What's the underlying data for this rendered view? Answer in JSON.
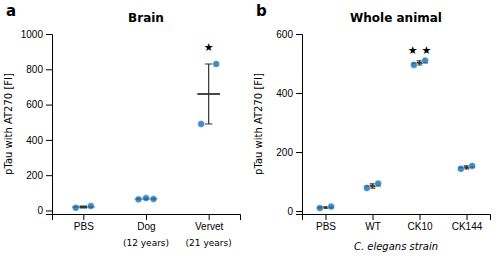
{
  "chart_data": [
    {
      "type": "strip",
      "title": "Brain",
      "panel_label": "a",
      "ylabel": "pTau with AT270 [FI]",
      "categories": [
        "PBS",
        "Dog",
        "Vervet"
      ],
      "sublabels": [
        null,
        "(12 years)",
        "(21 years)"
      ],
      "values": [
        [
          15,
          25
        ],
        [
          63,
          70,
          65
        ],
        [
          490,
          830
        ]
      ],
      "means": [
        20,
        66,
        660
      ],
      "sem": [
        5,
        2,
        170
      ],
      "ylim": [
        -20,
        1000
      ],
      "yticks": [
        0,
        200,
        400,
        600,
        800,
        1000
      ],
      "annotations": [
        {
          "category": "Vervet",
          "y": 950,
          "text": "★"
        }
      ]
    },
    {
      "type": "strip",
      "title": "Whole animal",
      "panel_label": "b",
      "ylabel": "pTau with AT270 [FI]",
      "xlabel": "C. elegans strain",
      "categories": [
        "PBS",
        "WT",
        "CK10",
        "CK144"
      ],
      "values": [
        [
          10,
          15
        ],
        [
          78,
          93
        ],
        [
          495,
          510
        ],
        [
          143,
          153
        ]
      ],
      "means": [
        12,
        85,
        502,
        148
      ],
      "sem": [
        2.5,
        7,
        7,
        5
      ],
      "ylim": [
        -10,
        600
      ],
      "yticks": [
        0,
        200,
        400,
        600
      ],
      "annotations": [
        {
          "category": "CK10",
          "y": 558,
          "text": "★ ★"
        }
      ]
    }
  ]
}
